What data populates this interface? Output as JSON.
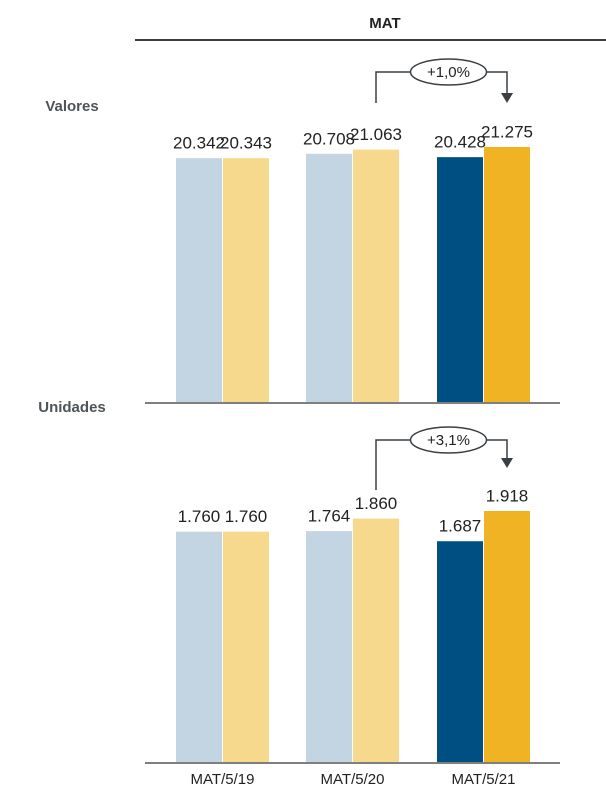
{
  "title": "MAT",
  "chart_data": [
    {
      "type": "bar",
      "title": "Valores",
      "categories": [
        null,
        null,
        null
      ],
      "series": [
        {
          "colors": [
            "#c3d5e2",
            "#c3d5e2",
            "#004f82"
          ],
          "values": [
            20342,
            20708,
            20428
          ],
          "value_labels": [
            "20.342",
            "20.708",
            "20.428"
          ]
        },
        {
          "colors": [
            "#f7d98e",
            "#f7d98e",
            "#efb324"
          ],
          "values": [
            20343,
            21063,
            21275
          ],
          "value_labels": [
            "20.343",
            "21.063",
            "21.275"
          ]
        }
      ],
      "annotation": "+1,0%"
    },
    {
      "type": "bar",
      "title": "Unidades",
      "categories": [
        "MAT/5/19",
        "MAT/5/20",
        "MAT/5/21"
      ],
      "series": [
        {
          "colors": [
            "#c3d5e2",
            "#c3d5e2",
            "#004f82"
          ],
          "values": [
            1760,
            1764,
            1687
          ],
          "value_labels": [
            "1.760",
            "1.764",
            "1.687"
          ]
        },
        {
          "colors": [
            "#f7d98e",
            "#f7d98e",
            "#efb324"
          ],
          "values": [
            1760,
            1860,
            1918
          ],
          "value_labels": [
            "1.760",
            "1.860",
            "1.918"
          ]
        }
      ],
      "annotation": "+3,1%"
    }
  ]
}
